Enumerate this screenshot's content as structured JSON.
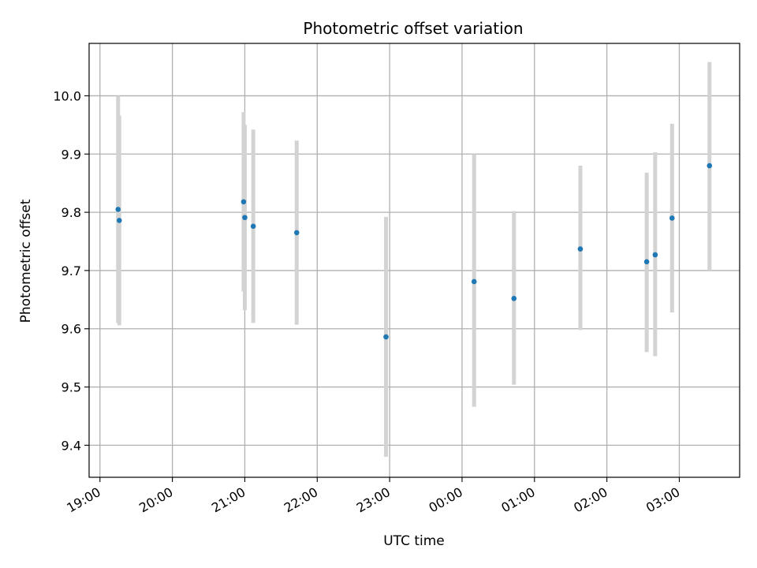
{
  "chart_data": {
    "type": "scatter",
    "title": "Photometric offset variation",
    "xlabel": "UTC time",
    "ylabel": "Photometric offset",
    "x_unit": "UTC time (HH:MM); times after midnight fall on the following day",
    "xlim": [
      "18:51",
      "03:50"
    ],
    "ylim": [
      9.345,
      10.09
    ],
    "grid": true,
    "legend": "none",
    "x_ticks": [
      "19:00",
      "20:00",
      "21:00",
      "22:00",
      "23:00",
      "00:00",
      "01:00",
      "02:00",
      "03:00"
    ],
    "y_ticks": [
      "9.4",
      "9.5",
      "9.6",
      "9.7",
      "9.8",
      "9.9",
      "10.0"
    ],
    "colors": {
      "points": "#1f77b4",
      "error_bars": "#d3d3d3",
      "grid": "#b0b0b0"
    },
    "series": [
      {
        "points": [
          {
            "x": "19:15",
            "y": 9.805,
            "ylow": 9.61,
            "yhigh": 10.0
          },
          {
            "x": "19:16",
            "y": 9.786,
            "ylow": 9.606,
            "yhigh": 9.966
          },
          {
            "x": "20:59",
            "y": 9.818,
            "ylow": 9.664,
            "yhigh": 9.972
          },
          {
            "x": "21:00",
            "y": 9.791,
            "ylow": 9.632,
            "yhigh": 9.95
          },
          {
            "x": "21:07",
            "y": 9.776,
            "ylow": 9.61,
            "yhigh": 9.942
          },
          {
            "x": "21:43",
            "y": 9.765,
            "ylow": 9.607,
            "yhigh": 9.923
          },
          {
            "x": "22:57",
            "y": 9.586,
            "ylow": 9.38,
            "yhigh": 9.792
          },
          {
            "x": "00:10",
            "y": 9.681,
            "ylow": 9.466,
            "yhigh": 9.9
          },
          {
            "x": "00:43",
            "y": 9.652,
            "ylow": 9.504,
            "yhigh": 9.802
          },
          {
            "x": "01:38",
            "y": 9.737,
            "ylow": 9.598,
            "yhigh": 9.88
          },
          {
            "x": "02:33",
            "y": 9.715,
            "ylow": 9.56,
            "yhigh": 9.868
          },
          {
            "x": "02:40",
            "y": 9.727,
            "ylow": 9.553,
            "yhigh": 9.903
          },
          {
            "x": "02:54",
            "y": 9.79,
            "ylow": 9.628,
            "yhigh": 9.952
          },
          {
            "x": "03:25",
            "y": 9.88,
            "ylow": 9.7,
            "yhigh": 10.058
          }
        ]
      }
    ]
  }
}
